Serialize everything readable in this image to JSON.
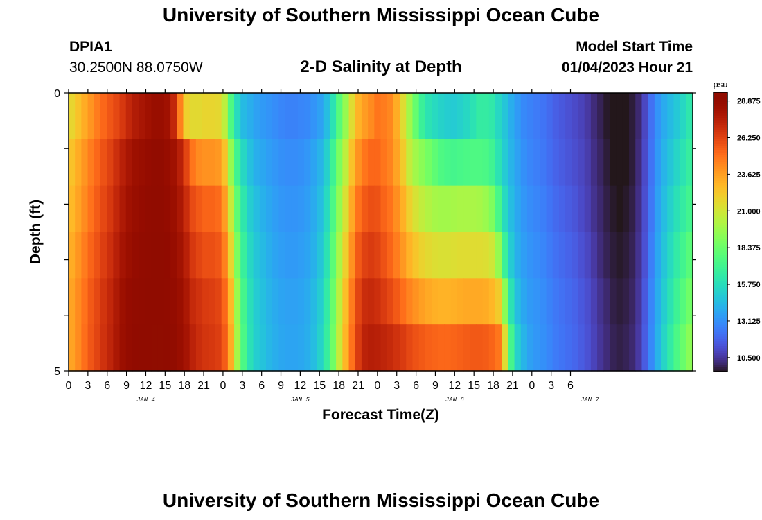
{
  "header": {
    "title": "University of Southern Mississippi Ocean Cube",
    "station_id": "DPIA1",
    "coordinates": "30.2500N  88.0750W",
    "chart_title": "2-D Salinity at Depth",
    "model_start_label": "Model Start Time",
    "model_start_value": "01/04/2023 Hour 21"
  },
  "footer": {
    "title": "University of Southern Mississippi Ocean Cube"
  },
  "chart_data": {
    "type": "heatmap",
    "title": "2-D Salinity at Depth",
    "xlabel": "Forecast Time(Z)",
    "ylabel": "Depth (ft)",
    "x_tick_labels": [
      "0",
      "3",
      "6",
      "9",
      "12",
      "15",
      "18",
      "21",
      "0",
      "3",
      "6",
      "9",
      "12",
      "15",
      "18",
      "21",
      "0",
      "3",
      "6",
      "9",
      "12",
      "15",
      "18",
      "21",
      "0",
      "3",
      "6"
    ],
    "day_labels": [
      "JAN 4",
      "JAN 5",
      "JAN 6",
      "JAN 7"
    ],
    "x_start": "2023-01-04 00Z",
    "x_step_hours": 1,
    "depth_rows": [
      0,
      1,
      2,
      3,
      4,
      5
    ],
    "y_ticks": [
      "0",
      "5"
    ],
    "ylim": [
      5,
      0
    ],
    "colorbar": {
      "unit": "psu",
      "min": 9.5,
      "max": 29.5,
      "labels": [
        "28.875",
        "26.250",
        "23.625",
        "21.000",
        "18.375",
        "15.750",
        "13.125",
        "10.500"
      ],
      "colormap": "turbo"
    },
    "salinity_psu": [
      [
        21.8,
        22.5,
        23.2,
        23.9,
        24.6,
        25.2,
        25.7,
        26.1,
        26.6,
        27.2,
        27.7,
        28.0,
        28.3,
        28.6,
        28.6,
        28.3,
        27.2,
        24.5,
        22.0,
        21.6,
        21.6,
        21.8,
        21.8,
        21.7,
        20.5,
        17.5,
        15.6,
        14.4,
        14.0,
        13.6,
        13.4,
        13.2,
        13.0,
        12.8,
        12.7,
        12.7,
        12.8,
        12.9,
        13.2,
        13.6,
        14.5,
        16.0,
        17.8,
        19.5,
        21.5,
        23.0,
        23.7,
        24.2,
        24.8,
        24.6,
        24.3,
        23.2,
        21.5,
        19.8,
        18.2,
        16.8,
        16.0,
        15.6,
        15.3,
        15.1,
        15.0,
        15.2,
        15.5,
        16.0,
        16.5,
        16.5,
        16.3,
        15.5,
        14.8,
        14.0,
        13.4,
        12.9,
        12.7,
        12.5,
        12.3,
        12.0,
        11.7,
        11.5,
        11.3,
        11.1,
        10.9,
        10.6,
        10.2,
        9.9,
        9.6,
        9.5,
        9.5,
        9.5,
        9.7,
        10.1,
        11.0,
        12.2,
        13.2,
        13.9,
        14.4,
        14.9,
        15.5,
        16.2
      ],
      [
        22.5,
        23.2,
        23.9,
        24.6,
        25.2,
        25.8,
        26.3,
        26.9,
        27.5,
        28.0,
        28.4,
        28.6,
        28.8,
        29.0,
        29.0,
        28.7,
        28.3,
        27.5,
        26.2,
        24.8,
        24.2,
        24.0,
        24.0,
        23.8,
        22.5,
        19.5,
        17.0,
        15.5,
        14.6,
        14.0,
        13.8,
        13.5,
        13.3,
        13.1,
        13.0,
        13.0,
        13.1,
        13.3,
        13.7,
        14.2,
        15.2,
        16.9,
        18.8,
        20.5,
        22.5,
        24.0,
        24.8,
        25.2,
        25.2,
        24.8,
        24.4,
        23.5,
        22.2,
        20.7,
        19.8,
        19.2,
        18.6,
        18.0,
        17.5,
        17.3,
        17.2,
        17.3,
        17.4,
        17.5,
        17.5,
        17.4,
        17.0,
        16.0,
        15.0,
        14.2,
        13.6,
        13.1,
        12.8,
        12.6,
        12.4,
        12.1,
        11.8,
        11.6,
        11.4,
        11.2,
        11.0,
        10.7,
        10.3,
        10.0,
        9.7,
        9.5,
        9.5,
        9.5,
        9.7,
        10.2,
        11.1,
        12.3,
        13.4,
        14.2,
        14.8,
        15.4,
        16.0,
        16.6
      ],
      [
        22.8,
        23.5,
        24.2,
        24.9,
        25.5,
        26.1,
        26.6,
        27.2,
        27.8,
        28.3,
        28.6,
        28.8,
        29.0,
        29.2,
        29.2,
        28.9,
        28.5,
        27.9,
        27.0,
        26.0,
        25.6,
        25.3,
        25.3,
        25.1,
        23.7,
        20.8,
        18.0,
        16.2,
        15.1,
        14.5,
        14.1,
        13.8,
        13.5,
        13.3,
        13.2,
        13.2,
        13.3,
        13.5,
        13.9,
        14.5,
        15.6,
        17.4,
        19.4,
        21.3,
        23.3,
        24.9,
        25.6,
        25.9,
        25.8,
        25.3,
        24.9,
        24.1,
        23.1,
        22.0,
        21.2,
        20.6,
        20.2,
        19.9,
        19.8,
        19.8,
        19.9,
        20.0,
        20.0,
        20.0,
        19.9,
        19.6,
        18.9,
        17.3,
        15.6,
        14.5,
        13.8,
        13.3,
        13.0,
        12.8,
        12.6,
        12.3,
        12.0,
        11.8,
        11.6,
        11.4,
        11.1,
        10.8,
        10.4,
        10.1,
        9.8,
        9.6,
        9.5,
        9.6,
        9.8,
        10.3,
        11.2,
        12.4,
        13.6,
        14.5,
        15.2,
        15.9,
        16.5,
        17.1
      ],
      [
        23.2,
        23.9,
        24.6,
        25.3,
        25.8,
        26.4,
        26.9,
        27.5,
        28.1,
        28.5,
        28.8,
        29.0,
        29.2,
        29.3,
        29.3,
        29.1,
        28.7,
        28.2,
        27.5,
        26.6,
        26.2,
        25.9,
        25.9,
        25.7,
        24.5,
        21.8,
        18.8,
        16.7,
        15.5,
        14.8,
        14.4,
        14.0,
        13.7,
        13.5,
        13.4,
        13.4,
        13.5,
        13.7,
        14.1,
        14.8,
        16.0,
        17.9,
        20.0,
        22.0,
        24.0,
        25.6,
        26.3,
        26.5,
        26.3,
        25.8,
        25.3,
        24.6,
        23.8,
        23.0,
        22.4,
        21.9,
        21.6,
        21.4,
        21.3,
        21.3,
        21.4,
        21.5,
        21.5,
        21.5,
        21.5,
        21.4,
        21.0,
        19.5,
        16.8,
        15.0,
        14.0,
        13.5,
        13.2,
        13.0,
        12.8,
        12.5,
        12.2,
        12.0,
        11.8,
        11.6,
        11.3,
        11.0,
        10.6,
        10.2,
        9.9,
        9.7,
        9.6,
        9.7,
        9.9,
        10.4,
        11.3,
        12.6,
        13.8,
        14.8,
        15.6,
        16.4,
        17.1,
        17.8
      ],
      [
        23.5,
        24.2,
        24.9,
        25.6,
        26.1,
        26.7,
        27.2,
        27.8,
        28.4,
        28.8,
        29.0,
        29.2,
        29.3,
        29.4,
        29.4,
        29.2,
        28.9,
        28.5,
        27.9,
        27.1,
        26.8,
        26.5,
        26.4,
        26.2,
        25.2,
        22.8,
        19.6,
        17.2,
        15.8,
        15.0,
        14.6,
        14.2,
        13.9,
        13.7,
        13.6,
        13.6,
        13.7,
        13.9,
        14.4,
        15.1,
        16.4,
        18.3,
        20.5,
        22.6,
        24.6,
        26.2,
        27.0,
        27.1,
        26.9,
        26.5,
        26.1,
        25.6,
        25.0,
        24.4,
        24.0,
        23.6,
        23.3,
        23.1,
        23.0,
        23.0,
        23.1,
        23.2,
        23.3,
        23.3,
        23.3,
        23.2,
        22.9,
        22.2,
        19.2,
        16.0,
        14.5,
        13.8,
        13.4,
        13.2,
        13.0,
        12.7,
        12.4,
        12.2,
        12.0,
        11.8,
        11.5,
        11.2,
        10.8,
        10.4,
        10.1,
        9.8,
        9.7,
        9.8,
        10.0,
        10.5,
        11.5,
        12.8,
        14.0,
        15.1,
        16.0,
        16.9,
        17.7,
        18.5
      ],
      [
        23.5,
        24.2,
        25.0,
        25.7,
        26.2,
        26.8,
        27.3,
        27.9,
        28.5,
        28.9,
        29.1,
        29.3,
        29.4,
        29.5,
        29.5,
        29.3,
        29.0,
        28.6,
        28.1,
        27.4,
        27.0,
        26.7,
        26.6,
        26.4,
        25.5,
        23.2,
        19.9,
        17.4,
        15.9,
        15.1,
        14.7,
        14.3,
        14.0,
        13.8,
        13.7,
        13.7,
        13.8,
        14.0,
        14.5,
        15.3,
        16.6,
        18.5,
        20.8,
        22.9,
        24.9,
        26.5,
        27.4,
        27.6,
        27.5,
        27.3,
        27.1,
        26.8,
        26.5,
        26.1,
        25.8,
        25.6,
        25.4,
        25.3,
        25.2,
        25.2,
        25.3,
        25.4,
        25.5,
        25.6,
        25.6,
        25.5,
        25.3,
        24.8,
        21.5,
        17.2,
        15.2,
        14.2,
        13.6,
        13.3,
        13.1,
        12.8,
        12.5,
        12.3,
        12.1,
        11.9,
        11.6,
        11.3,
        10.9,
        10.5,
        10.2,
        9.9,
        9.8,
        9.9,
        10.1,
        10.6,
        11.6,
        12.9,
        14.2,
        15.4,
        16.4,
        17.4,
        18.3,
        19.2
      ]
    ]
  }
}
